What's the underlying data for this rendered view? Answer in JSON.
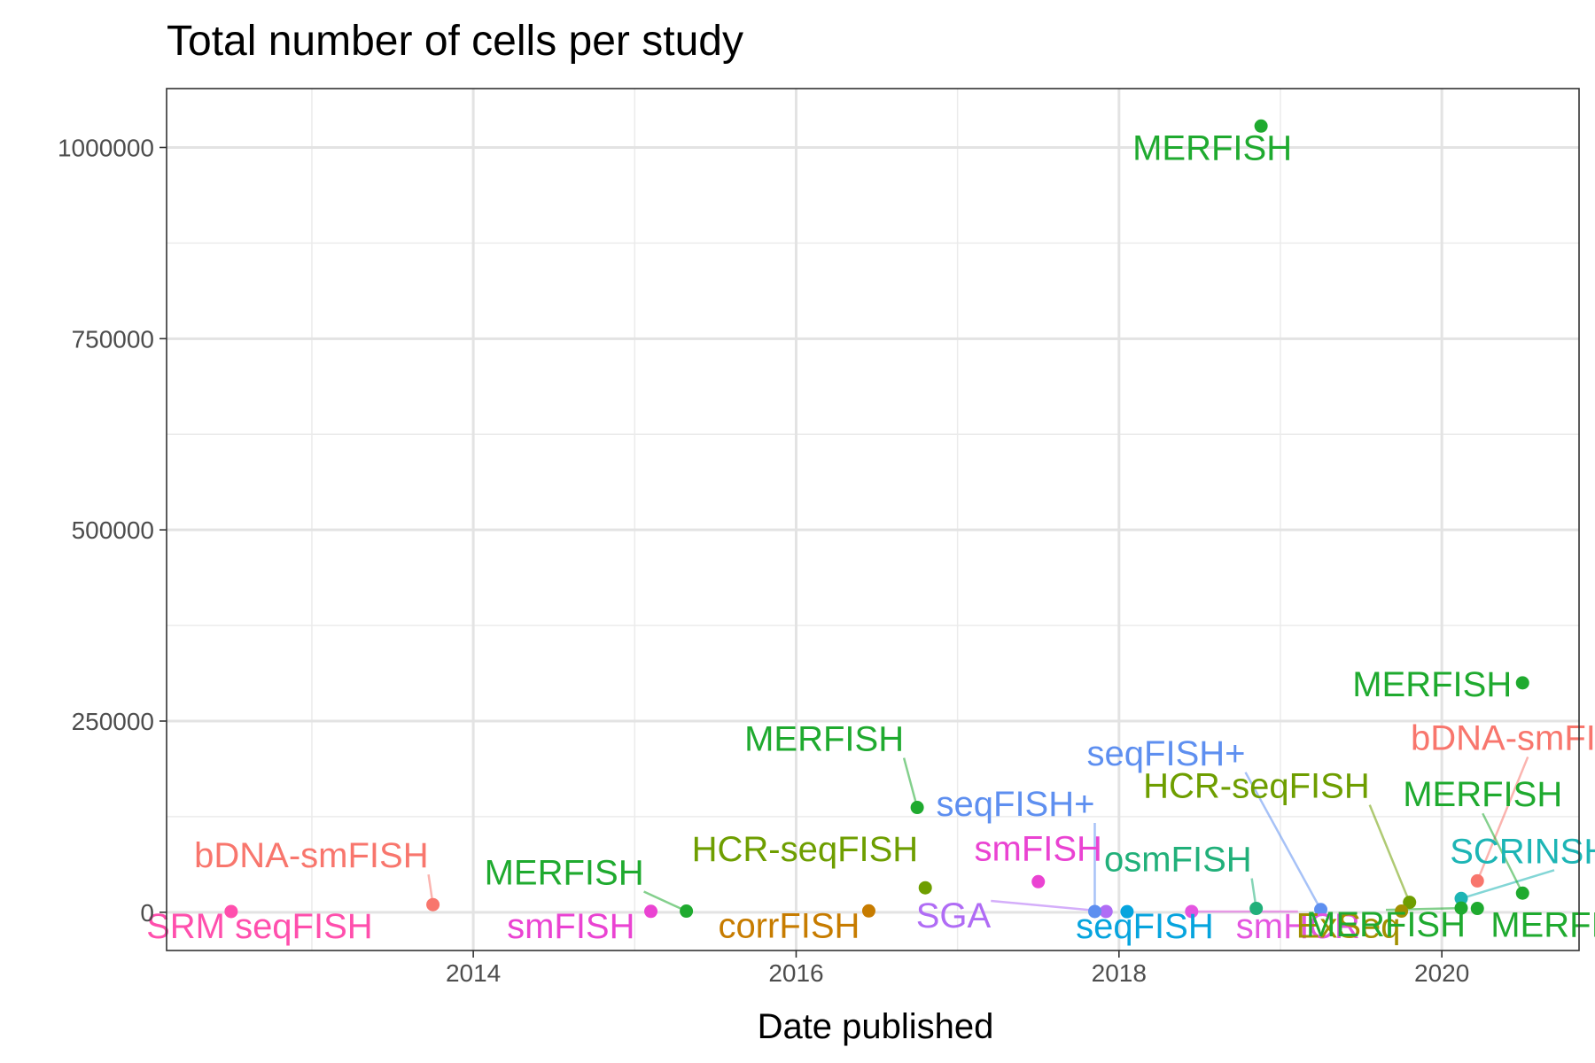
{
  "chart_data": {
    "type": "scatter",
    "title": "Total number of cells per study",
    "xlabel": "Date published",
    "ylabel": "",
    "xlim": [
      2012.1,
      2020.85
    ],
    "ylim": [
      -50000,
      1077000
    ],
    "x_ticks": [
      2014,
      2016,
      2018,
      2020
    ],
    "x_tick_labels": [
      "2014",
      "2016",
      "2018",
      "2020"
    ],
    "y_ticks": [
      0,
      250000,
      500000,
      750000,
      1000000
    ],
    "y_tick_labels": [
      "0",
      "250000",
      "500000",
      "750000",
      "1000000"
    ],
    "grid": true,
    "legend": "none",
    "points": [
      {
        "label": "SRM seqFISH",
        "date": 2012.5,
        "cells": 1000,
        "color": "#FF4FAD"
      },
      {
        "label": "bDNA-smFISH",
        "date": 2013.75,
        "cells": 10000,
        "color": "#F8766D"
      },
      {
        "label": "smFISH",
        "date": 2015.1,
        "cells": 1200,
        "color": "#EA43D2"
      },
      {
        "label": "MERFISH",
        "date": 2015.32,
        "cells": 1500,
        "color": "#1FAA2F"
      },
      {
        "label": "corrFISH",
        "date": 2016.45,
        "cells": 1800,
        "color": "#C77C00"
      },
      {
        "label": "MERFISH",
        "date": 2016.75,
        "cells": 137000,
        "color": "#1FAA2F"
      },
      {
        "label": "HCR-seqFISH",
        "date": 2016.8,
        "cells": 32000,
        "color": "#6E9E00"
      },
      {
        "label": "smFISH",
        "date": 2017.5,
        "cells": 40000,
        "color": "#EA43D2"
      },
      {
        "label": "SGA",
        "date": 2017.92,
        "cells": 1000,
        "color": "#B06CF5"
      },
      {
        "label": "seqFISH+",
        "date": 2017.85,
        "cells": 1000,
        "color": "#5E8FF0"
      },
      {
        "label": "seqFISH",
        "date": 2018.05,
        "cells": 800,
        "color": "#06A4DE"
      },
      {
        "label": "smHCR",
        "date": 2018.45,
        "cells": 1000,
        "color": "#E455E0"
      },
      {
        "label": "osmFISH",
        "date": 2018.85,
        "cells": 5000,
        "color": "#21B07A"
      },
      {
        "label": "MERFISH",
        "date": 2018.88,
        "cells": 1028000,
        "color": "#1FAA2F"
      },
      {
        "label": "seqFISH+",
        "date": 2019.25,
        "cells": 3500,
        "color": "#5E8FF0"
      },
      {
        "label": "HCR-seqFISH",
        "date": 2019.8,
        "cells": 13000,
        "color": "#6E9E00"
      },
      {
        "label": "ExSeq",
        "date": 2019.75,
        "cells": 1500,
        "color": "#A29000"
      },
      {
        "label": "SCRINSHOT",
        "date": 2020.12,
        "cells": 18000,
        "color": "#1DB5B5"
      },
      {
        "label": "MERFISH",
        "date": 2020.12,
        "cells": 5500,
        "color": "#1FAA2F"
      },
      {
        "label": "MERFISH",
        "date": 2020.22,
        "cells": 5000,
        "color": "#1FAA2F"
      },
      {
        "label": "bDNA-smFISH",
        "date": 2020.22,
        "cells": 41000,
        "color": "#F8766D"
      },
      {
        "label": "MERFISH",
        "date": 2020.5,
        "cells": 300000,
        "color": "#1FAA2F"
      },
      {
        "label": "MERFISH",
        "date": 2020.5,
        "cells": 25000,
        "color": "#1FAA2F"
      }
    ]
  }
}
